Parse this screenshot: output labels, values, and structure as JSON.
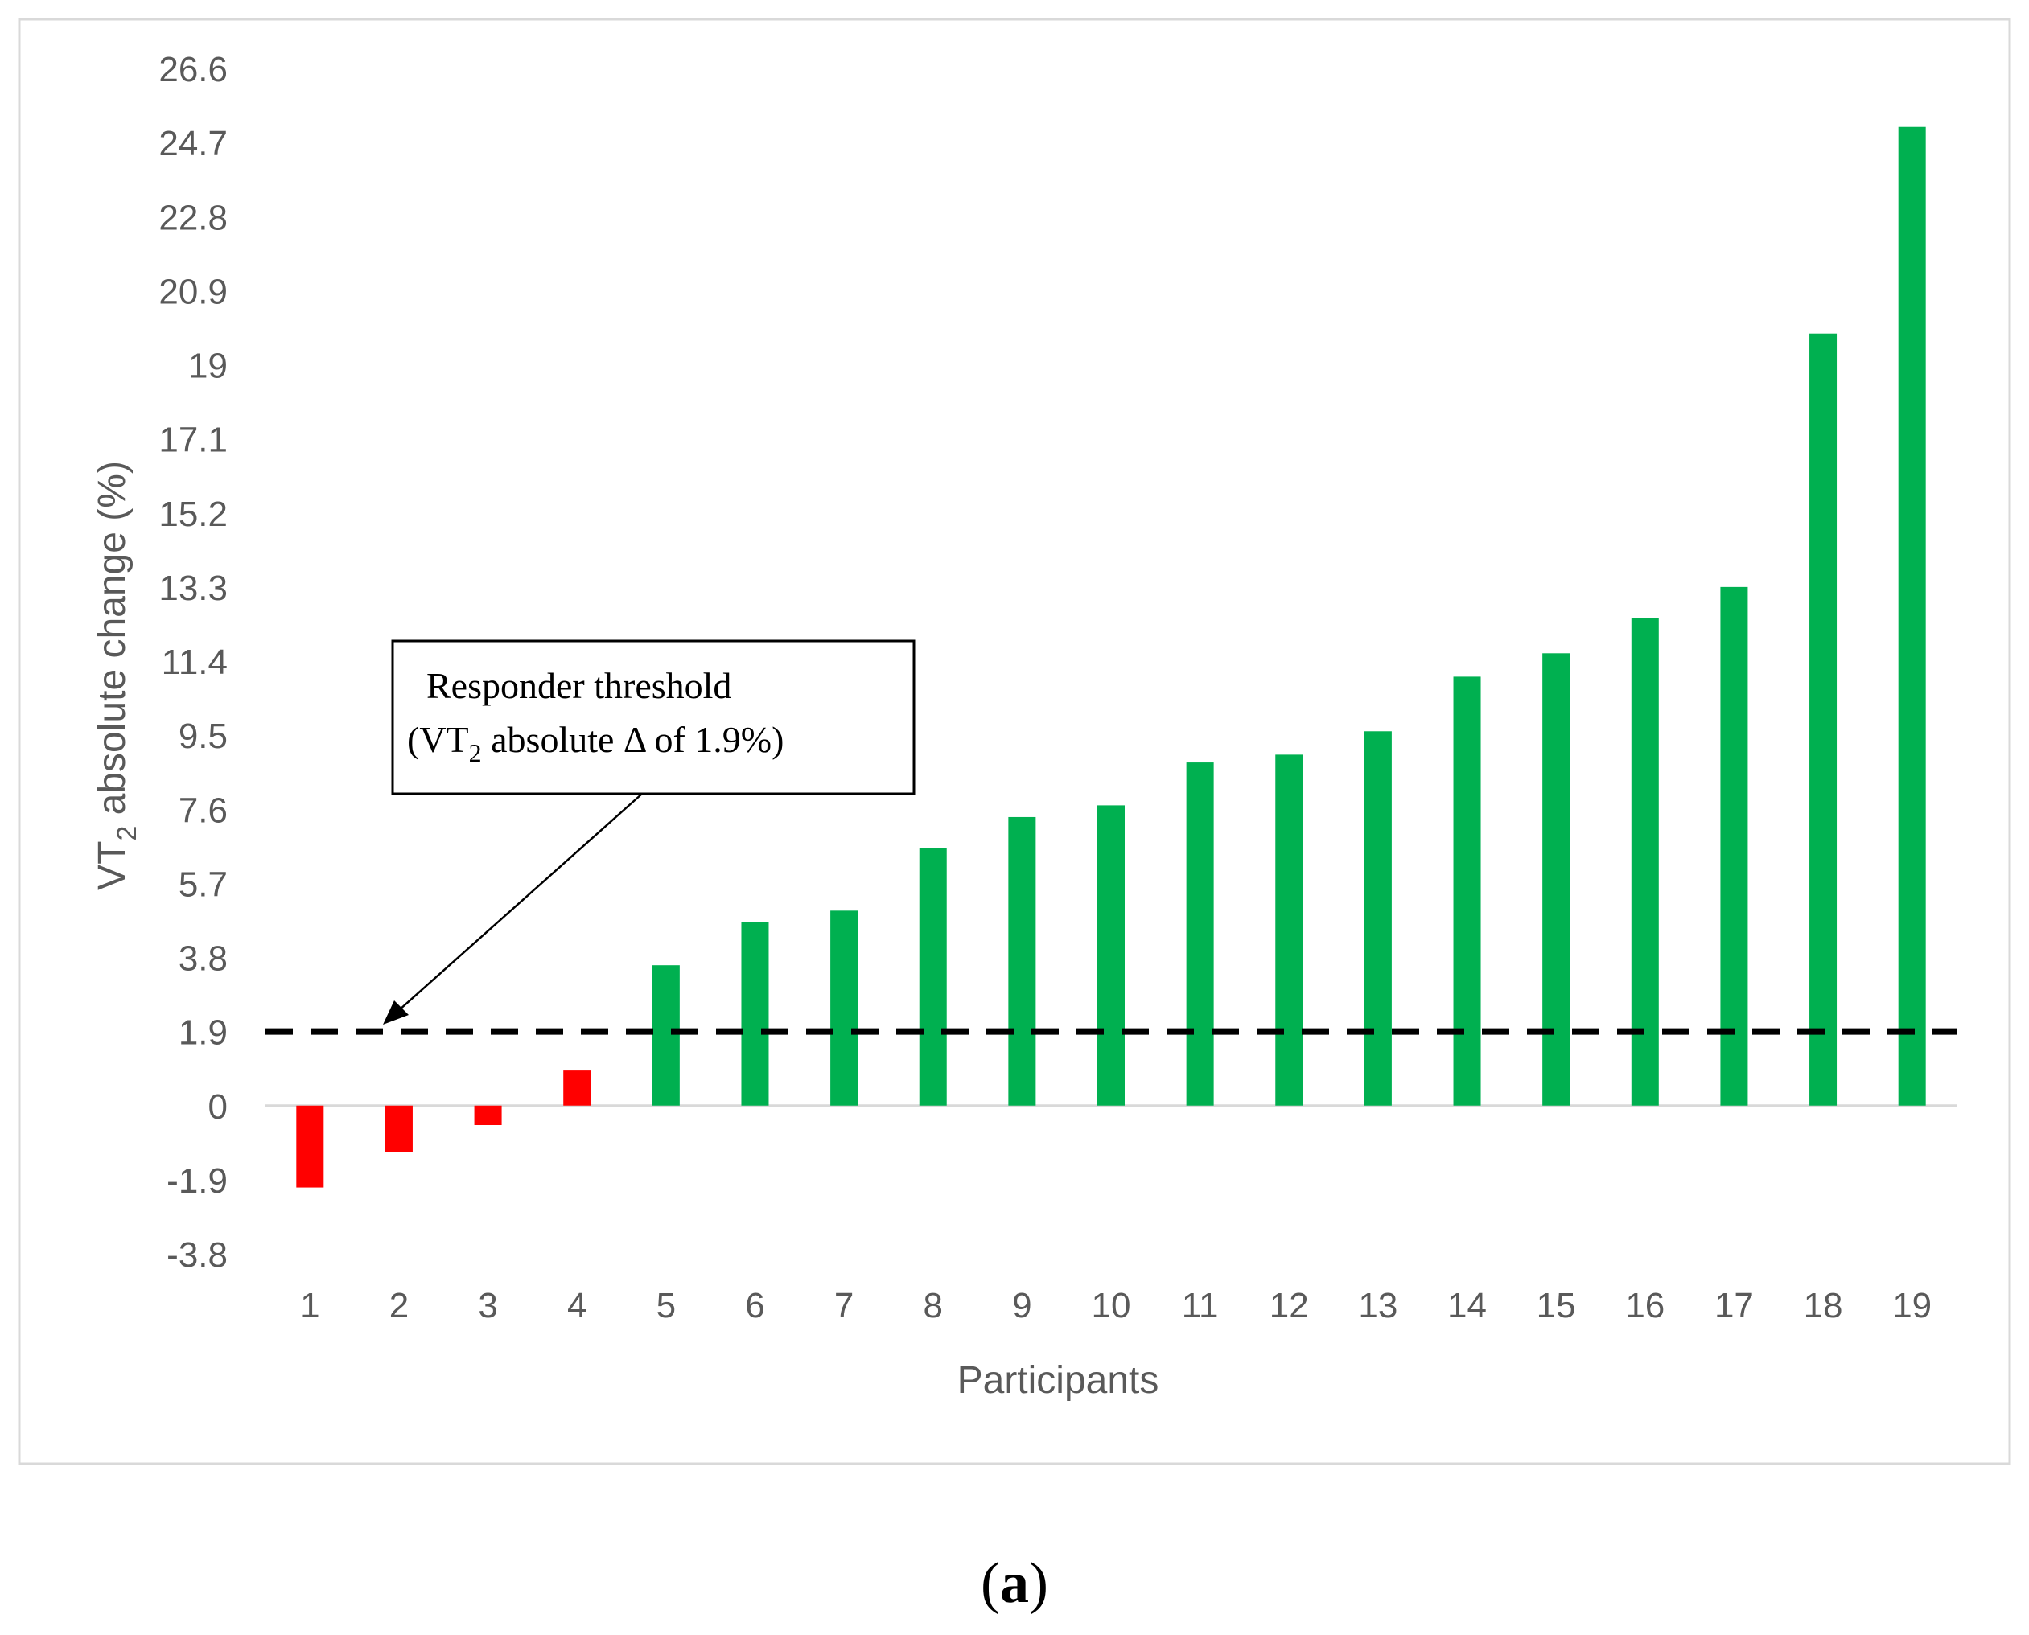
{
  "chart_data": {
    "type": "bar",
    "categories": [
      "1",
      "2",
      "3",
      "4",
      "5",
      "6",
      "7",
      "8",
      "9",
      "10",
      "11",
      "12",
      "13",
      "14",
      "15",
      "16",
      "17",
      "18",
      "19"
    ],
    "values": [
      -2.1,
      -1.2,
      -0.5,
      0.9,
      3.6,
      4.7,
      5.0,
      6.6,
      7.4,
      7.7,
      8.8,
      9.0,
      9.6,
      11.0,
      11.6,
      12.5,
      13.3,
      19.8,
      25.1
    ],
    "responders": [
      false,
      false,
      false,
      false,
      true,
      true,
      true,
      true,
      true,
      true,
      true,
      true,
      true,
      true,
      true,
      true,
      true,
      true,
      true
    ],
    "colors": {
      "responder": "#00b050",
      "non_responder": "#ff0000",
      "threshold_line": "#000000"
    },
    "xlabel": "Participants",
    "ylabel": {
      "prefix": "VT",
      "subscript": "2",
      "suffix": " absolute  change (%)"
    },
    "yticks": [
      "-3.8",
      "-1.9",
      "0",
      "1.9",
      "3.8",
      "5.7",
      "7.6",
      "9.5",
      "11.4",
      "13.3",
      "15.2",
      "17.1",
      "19",
      "20.9",
      "22.8",
      "24.7",
      "26.6"
    ],
    "ylim": [
      -3.8,
      26.6
    ],
    "threshold": 1.9,
    "annotation": {
      "line1": "Responder threshold",
      "line2_prefix": "(VT",
      "line2_subscript": "2",
      "line2_suffix": " absolute Δ of 1.9%)"
    }
  },
  "panel_label": {
    "open": "(",
    "letter": "a",
    "close": ")"
  }
}
